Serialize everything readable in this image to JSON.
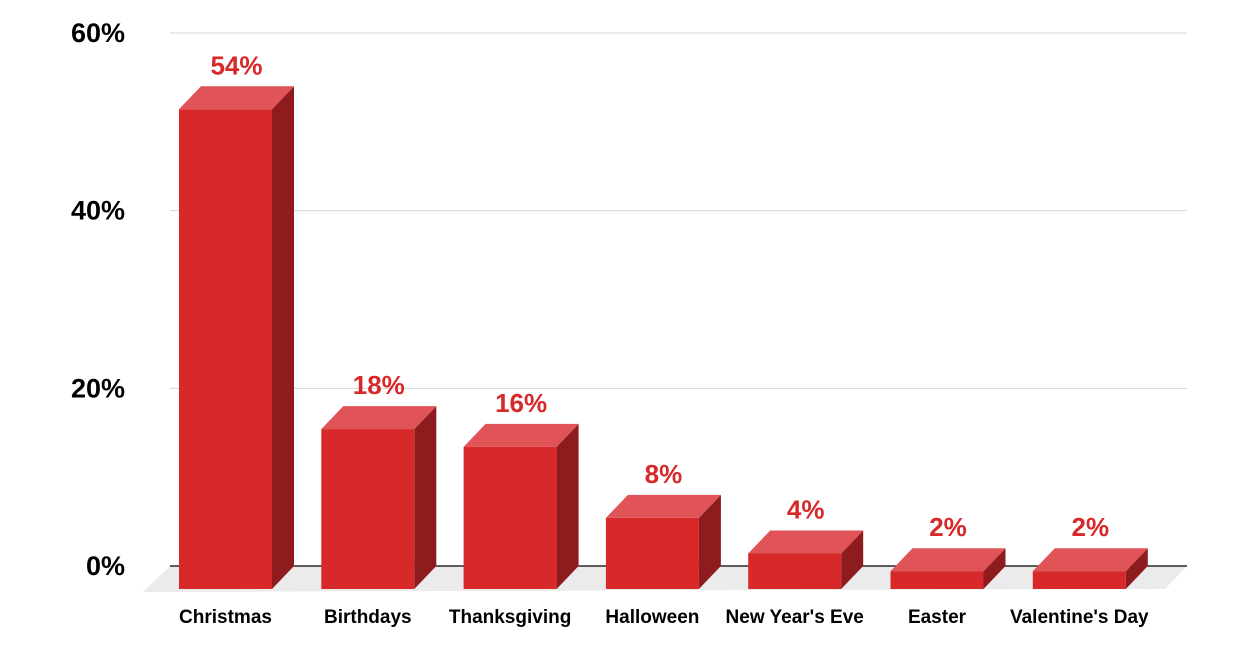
{
  "chart_data": {
    "type": "bar",
    "categories": [
      "Christmas",
      "Birthdays",
      "Thanksgiving",
      "Halloween",
      "New Year's Eve",
      "Easter",
      "Valentine's Day"
    ],
    "values": [
      54,
      18,
      16,
      8,
      4,
      2,
      2
    ],
    "data_labels": [
      "54%",
      "18%",
      "16%",
      "8%",
      "4%",
      "2%",
      "2%"
    ],
    "y_ticks": [
      {
        "value": 0,
        "label": "0%"
      },
      {
        "value": 20,
        "label": "20%"
      },
      {
        "value": 40,
        "label": "40%"
      },
      {
        "value": 60,
        "label": "60%"
      }
    ],
    "ylim": [
      0,
      60
    ],
    "title": "",
    "xlabel": "",
    "ylabel": "",
    "grid": true,
    "style": "3d",
    "colors": {
      "bar_front": "#d7282a",
      "bar_top": "#e05356",
      "bar_side": "#8e1b1d",
      "data_label": "#d7282a",
      "grid": "#d6d6d6",
      "floor": "#ebebeb"
    }
  }
}
